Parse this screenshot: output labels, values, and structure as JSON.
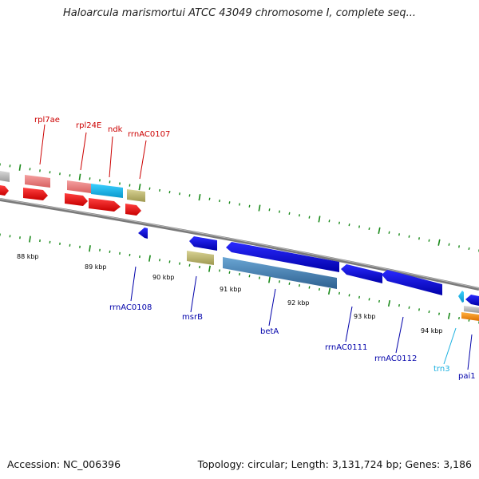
{
  "title": "Haloarcula marismortui ATCC 43049 chromosome I, complete seq...",
  "footer": {
    "accession": "Accession: NC_006396",
    "summary": "Topology: circular; Length: 3,131,724 bp; Genes: 3,186"
  },
  "kbp_labels": [
    "88 kbp",
    "89 kbp",
    "90 kbp",
    "91 kbp",
    "92 kbp",
    "93 kbp",
    "94 kbp"
  ],
  "forward_gene_labels": [
    "rpl7ae",
    "rpl24E",
    "ndk",
    "rrnAC0107"
  ],
  "reverse_gene_labels": [
    "rrnAC0108",
    "msrB",
    "betA",
    "rrnAC0111",
    "rrnAC0112",
    "trn3",
    "pai1"
  ],
  "colors": {
    "forward_label": "#cc0000",
    "reverse_label": "#0000aa",
    "trna_label": "#1ab0e0",
    "forward_cds": "#ff0000",
    "reverse_cds": "#0000ee",
    "backbone": "#808080",
    "tick": "#1a8a1a",
    "cog_pink": "#f08080",
    "cog_cyan": "#19b9ef",
    "cog_khaki": "#bdb76b",
    "cog_steel": "#4682b4",
    "cog_orange": "#ff8c00"
  }
}
